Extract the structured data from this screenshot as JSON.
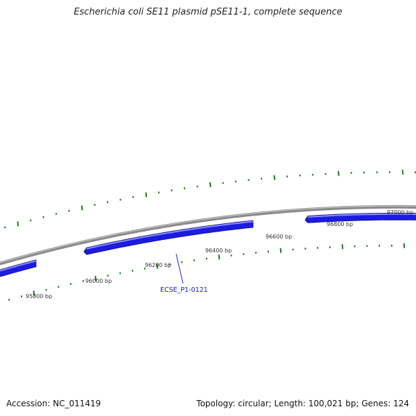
{
  "title": "Escherichia coli SE11 plasmid pSE11-1, complete sequence",
  "footer": {
    "accession": "Accession: NC_011419",
    "summary": "Topology: circular; Length: 100,021 bp; Genes: 124"
  },
  "colors": {
    "backbone": "#8a8a8a",
    "backbone_highlight": "#cfcfcf",
    "gene": "#1c1ce0",
    "gene_highlight": "#8f8fff",
    "gene_shadow": "#0a0a8a",
    "tick": "#1e7a1e",
    "callout": "#2222cc"
  },
  "ticks": [
    {
      "label": "95800 bp"
    },
    {
      "label": "96000 bp"
    },
    {
      "label": "96200 bp"
    },
    {
      "label": "96400 bp"
    },
    {
      "label": "96600 bp"
    },
    {
      "label": "96800 bp"
    },
    {
      "label": "97000 bp"
    }
  ],
  "genes": [
    {
      "name": ""
    },
    {
      "name": "ECSE_P1-0121"
    },
    {
      "name": ""
    },
    {
      "name": ""
    }
  ]
}
